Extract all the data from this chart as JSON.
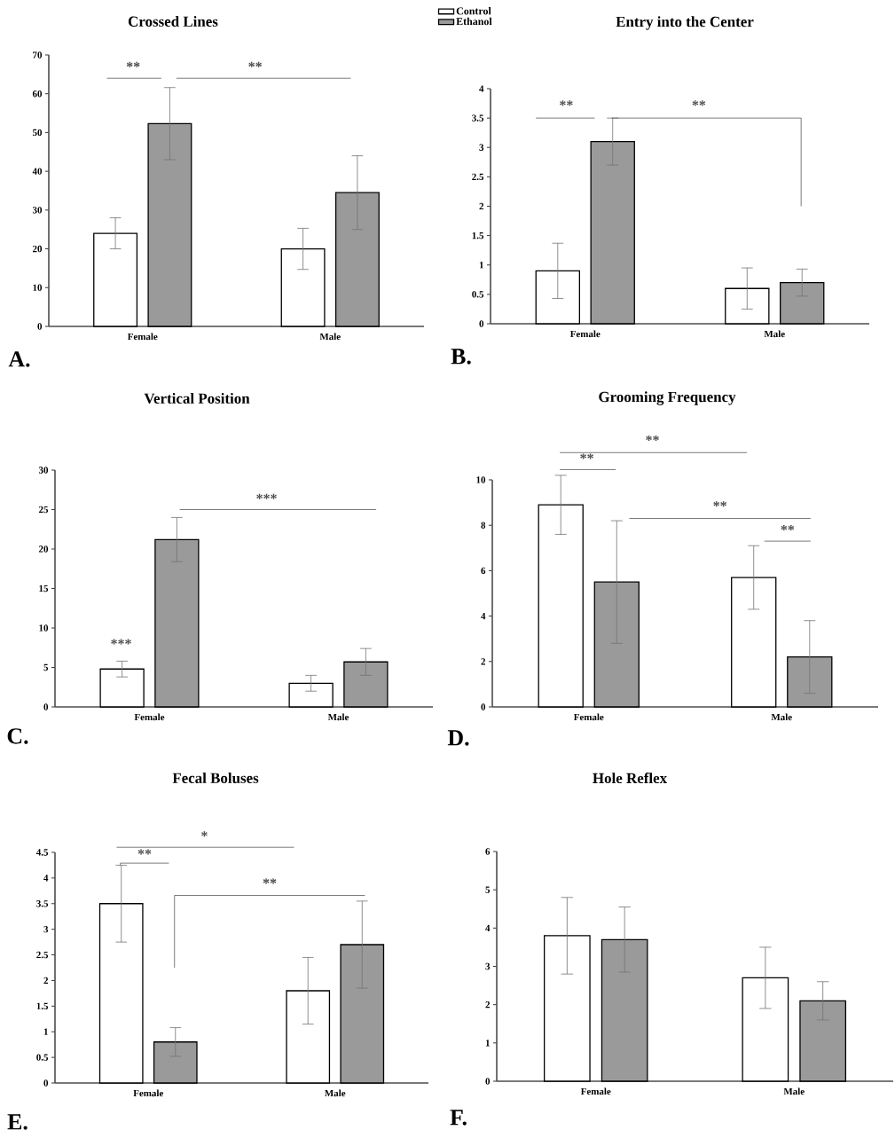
{
  "chart_data": [
    {
      "type": "bar",
      "title": "Crossed Lines",
      "categories": [
        "Female",
        "Male"
      ],
      "ylim": [
        0,
        70
      ],
      "yticks": [
        0,
        10,
        20,
        30,
        40,
        50,
        60,
        70
      ],
      "legend": "top right",
      "series": [
        {
          "name": "Control",
          "color": "#ffffff",
          "values": [
            24,
            20
          ],
          "errors": [
            4,
            5.3
          ]
        },
        {
          "name": "Ethanol",
          "color": "#9a9a9a",
          "values": [
            52.3,
            34.5
          ],
          "errors": [
            9.3,
            9.5
          ]
        }
      ],
      "annotations": [
        "A.",
        "**",
        "**"
      ]
    },
    {
      "type": "bar",
      "title": "Entry into the Center",
      "categories": [
        "Female",
        "Male"
      ],
      "ylim": [
        0,
        4
      ],
      "yticks": [
        0,
        0.5,
        1,
        1.5,
        2,
        2.5,
        3,
        3.5,
        4
      ],
      "series": [
        {
          "color": "#ffffff",
          "values": [
            0.9,
            0.6
          ],
          "errors": [
            0.47,
            0.35
          ]
        },
        {
          "color": "#9a9a9a",
          "values": [
            3.1,
            0.7
          ],
          "errors": [
            0.4,
            0.23
          ]
        }
      ],
      "annotations": [
        "B.",
        "**",
        "**"
      ]
    },
    {
      "type": "bar",
      "title": "Vertical Position",
      "categories": [
        "Female",
        "Male"
      ],
      "ylim": [
        0,
        30
      ],
      "yticks": [
        0,
        5,
        10,
        15,
        20,
        25,
        30
      ],
      "series": [
        {
          "color": "#ffffff",
          "values": [
            4.8,
            3.0
          ],
          "errors": [
            1.0,
            1.0
          ]
        },
        {
          "color": "#9a9a9a",
          "values": [
            21.2,
            5.7
          ],
          "errors": [
            2.8,
            1.7
          ]
        }
      ],
      "annotations": [
        "C.",
        "***",
        "***"
      ]
    },
    {
      "type": "bar",
      "title": "Grooming Frequency",
      "categories": [
        "Female",
        "Male"
      ],
      "ylim": [
        0,
        10
      ],
      "yticks": [
        0,
        2,
        4,
        6,
        8,
        10
      ],
      "series": [
        {
          "color": "#ffffff",
          "values": [
            8.9,
            5.7
          ],
          "errors": [
            1.3,
            1.4
          ]
        },
        {
          "color": "#9a9a9a",
          "values": [
            5.5,
            2.2
          ],
          "errors": [
            2.7,
            1.6
          ]
        }
      ],
      "annotations": [
        "D.",
        "**",
        "**",
        "**",
        "**"
      ]
    },
    {
      "type": "bar",
      "title": "Fecal Boluses",
      "categories": [
        "Female",
        "Male"
      ],
      "ylim": [
        0,
        4.5
      ],
      "yticks": [
        0,
        0.5,
        1,
        1.5,
        2,
        2.5,
        3,
        3.5,
        4,
        4.5
      ],
      "series": [
        {
          "color": "#ffffff",
          "values": [
            3.5,
            1.8
          ],
          "errors": [
            0.75,
            0.65
          ]
        },
        {
          "color": "#9a9a9a",
          "values": [
            0.8,
            2.7
          ],
          "errors": [
            0.28,
            0.85
          ]
        }
      ],
      "annotations": [
        "E.",
        "*",
        "**",
        "**"
      ]
    },
    {
      "type": "bar",
      "title": "Hole Reflex",
      "categories": [
        "Female",
        "Male"
      ],
      "ylim": [
        0,
        6
      ],
      "yticks": [
        0,
        1,
        2,
        3,
        4,
        5,
        6
      ],
      "series": [
        {
          "color": "#ffffff",
          "values": [
            3.8,
            2.7
          ],
          "errors": [
            1.0,
            0.8
          ]
        },
        {
          "color": "#9a9a9a",
          "values": [
            3.7,
            2.1
          ],
          "errors": [
            0.85,
            0.5
          ]
        }
      ],
      "annotations": [
        "F."
      ]
    }
  ]
}
